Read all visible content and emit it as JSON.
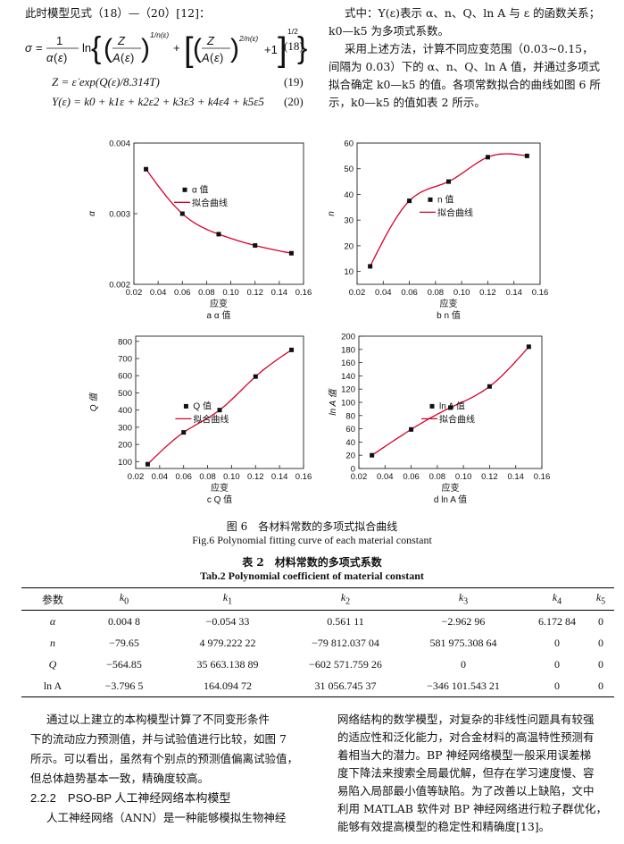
{
  "left_top": {
    "intro": "此时模型见式（18）—（20）[12]：",
    "eq18_num": "(18)",
    "eq19": "Z = ε̇ exp(Q(ε)/8.314T)",
    "eq19_num": "(19)",
    "eq20": "Y(ε) = k0 + k1ε + k2ε2 + k3ε3 + k4ε4 + k5ε5",
    "eq20_num": "(20)"
  },
  "right_top": {
    "line1": "式中：Y(ε)表示 α、n、Q、ln A 与 ε 的函数关系；",
    "line2": "k0—k5 为多项式系数。",
    "line3": "采用上述方法，计算不同应变范围（0.03~0.15，",
    "line4": "间隔为 0.03）下的 α、n、Q、ln A 值，并通过多项式",
    "line5": "拟合确定 k0—k5 的值。各项常数拟合的曲线如图 6 所",
    "line6": "示，k0—k5 的值如表 2 所示。"
  },
  "chart_data": [
    {
      "type": "line",
      "title": "a α 值",
      "xlabel": "应变",
      "ylabel": "α",
      "series_point_label": "α 值",
      "series_fit_label": "拟合曲线",
      "x": [
        0.03,
        0.06,
        0.09,
        0.12,
        0.15
      ],
      "values": [
        0.00363,
        0.003,
        0.00271,
        0.00255,
        0.00244
      ],
      "xlim": [
        0.02,
        0.16
      ],
      "ylim": [
        0.002,
        0.004
      ],
      "xticks": [
        "0.02",
        "0.04",
        "0.06",
        "0.08",
        "0.10",
        "0.12",
        "0.14",
        "0.16"
      ],
      "yticks": [
        "0.002",
        "0.003",
        "0.004"
      ]
    },
    {
      "type": "line",
      "title": "b n 值",
      "xlabel": "应变",
      "ylabel": "n",
      "series_point_label": "n 值",
      "series_fit_label": "拟合曲线",
      "x": [
        0.03,
        0.06,
        0.09,
        0.12,
        0.15
      ],
      "values": [
        12,
        37.5,
        45,
        54.5,
        55
      ],
      "xlim": [
        0.02,
        0.16
      ],
      "ylim": [
        5,
        60
      ],
      "xticks": [
        "0.02",
        "0.04",
        "0.06",
        "0.08",
        "0.10",
        "0.12",
        "0.14",
        "0.16"
      ],
      "yticks": [
        "10",
        "20",
        "30",
        "40",
        "50",
        "60"
      ]
    },
    {
      "type": "line",
      "title": "c Q 值",
      "xlabel": "应变",
      "ylabel": "Q 值",
      "series_point_label": "Q 值",
      "series_fit_label": "拟合曲线",
      "x": [
        0.03,
        0.06,
        0.09,
        0.12,
        0.15
      ],
      "values": [
        85,
        270,
        400,
        595,
        750
      ],
      "xlim": [
        0.02,
        0.16
      ],
      "ylim": [
        60,
        830
      ],
      "xticks": [
        "0.02",
        "0.04",
        "0.06",
        "0.08",
        "0.10",
        "0.12",
        "0.14",
        "0.16"
      ],
      "yticks": [
        "100",
        "200",
        "300",
        "400",
        "500",
        "600",
        "700",
        "800"
      ]
    },
    {
      "type": "line",
      "title": "d ln A 值",
      "xlabel": "应变",
      "ylabel": "ln A 值",
      "series_point_label": "ln A 值",
      "series_fit_label": "拟合曲线",
      "x": [
        0.03,
        0.06,
        0.09,
        0.12,
        0.15
      ],
      "values": [
        20,
        59,
        92,
        124,
        184
      ],
      "xlim": [
        0.02,
        0.16
      ],
      "ylim": [
        0,
        200
      ],
      "xticks": [
        "0.02",
        "0.04",
        "0.06",
        "0.08",
        "0.10",
        "0.12",
        "0.14",
        "0.16"
      ],
      "yticks": [
        "0",
        "20",
        "40",
        "60",
        "80",
        "100",
        "120",
        "140",
        "160",
        "180",
        "200"
      ]
    }
  ],
  "figure_caption": {
    "cn": "图 6　各材料常数的多项式拟合曲线",
    "en": "Fig.6 Polynomial fitting curve of each material constant"
  },
  "table": {
    "caption_cn": "表 2　材料常数的多项式系数",
    "caption_en": "Tab.2 Polynomial coefficient of material constant",
    "headers": [
      "参数",
      "k0",
      "k1",
      "k2",
      "k3",
      "k4",
      "k5"
    ],
    "rows": [
      [
        "α",
        "0.004 8",
        "−0.054 33",
        "0.561 11",
        "−2.962 96",
        "6.172 84",
        "0"
      ],
      [
        "n",
        "−79.65",
        "4 979.222 22",
        "−79 812.037 04",
        "581 975.308 64",
        "0",
        "0"
      ],
      [
        "Q",
        "−564.85",
        "35 663.138 89",
        "−602 571.759 26",
        "0",
        "0",
        "0"
      ],
      [
        "ln A",
        "−3.796 5",
        "164.094 72",
        "31 056.745 37",
        "−346 101.543 21",
        "0",
        "0"
      ]
    ]
  },
  "bottom_left": {
    "p1_l1": "通过以上建立的本构模型计算了不同变形条件",
    "p1_l2": "下的流动应力预测值，并与试验值进行比较，如图 7",
    "p1_l3": "所示。可以看出，虽然有个别点的预测值偏离试验值，",
    "p1_l4": "但总体趋势基本一致，精确度较高。",
    "section": "2.2.2　PSO-BP 人工神经网络本构模型",
    "p2_l1": "人工神经网络（ANN）是一种能够模拟生物神经"
  },
  "bottom_right": {
    "l1": "网络结构的数学模型，对复杂的非线性问题具有较强",
    "l2": "的适应性和泛化能力，对合金材料的高温特性预测有",
    "l3": "着相当大的潜力。BP 神经网络模型一般采用误差梯",
    "l4": "度下降法来搜索全局最优解，但存在学习速度慢、容",
    "l5": "易陷入局部最小值等缺陷。为了改善以上缺陷，文中",
    "l6": "利用 MATLAB 软件对 BP 神经网络进行粒子群优化，",
    "l7": "能够有效提高模型的稳定性和精确度[13]。"
  }
}
